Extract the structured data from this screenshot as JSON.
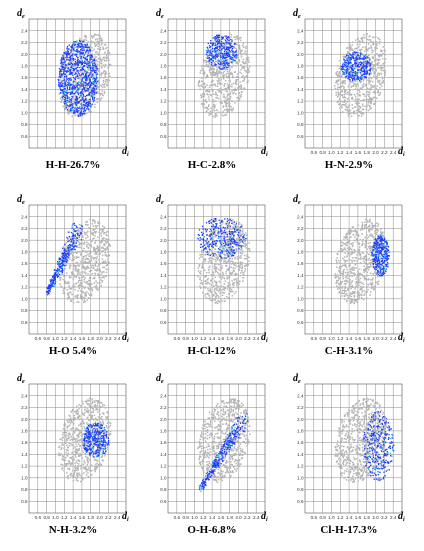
{
  "colors": {
    "background_cloud": "#b4b4b4",
    "highlight_points": "#1f3cf5",
    "highlight_core": "#15b7ee",
    "grid_line": "#7d7d7d"
  },
  "chart_data": [
    {
      "type": "scatter",
      "caption": "H-H-26.7%",
      "ylabel": "de",
      "xlabel": "di",
      "y_ticks": [
        "2.4",
        "2.2",
        "2.0",
        "1.8",
        "1.6",
        "1.4",
        "1.2",
        "1.0",
        "0.8",
        "0.6"
      ],
      "x_ticks": [],
      "xlim": [
        0.4,
        2.6
      ],
      "ylim": [
        0.4,
        2.6
      ],
      "highlight": {
        "shape": "full_cloud",
        "center": [
          1.5,
          1.6
        ],
        "extent": [
          0.45,
          0.65
        ]
      }
    },
    {
      "type": "scatter",
      "caption": "H-C-2.8%",
      "ylabel": "de",
      "xlabel": "di",
      "y_ticks": [
        "2.4",
        "2.2",
        "2.0",
        "1.8",
        "1.6",
        "1.4",
        "1.2",
        "1.0",
        "0.8",
        "0.6"
      ],
      "x_ticks": [],
      "xlim": [
        0.4,
        2.6
      ],
      "ylim": [
        0.4,
        2.6
      ],
      "highlight": {
        "shape": "wing_top",
        "center": [
          1.6,
          2.05
        ],
        "extent": [
          0.35,
          0.3
        ]
      }
    },
    {
      "type": "scatter",
      "caption": "H-N-2.9%",
      "ylabel": "de",
      "xlabel": "di",
      "y_ticks": [
        "2.4",
        "2.2",
        "2.0",
        "1.8",
        "1.6",
        "1.4",
        "1.2",
        "1.0",
        "0.8",
        "0.6"
      ],
      "x_ticks": [
        "0.6",
        "0.8",
        "1.0",
        "1.2",
        "1.4",
        "1.6",
        "1.8",
        "2.0",
        "2.2",
        "2.4"
      ],
      "xlim": [
        0.4,
        2.6
      ],
      "ylim": [
        0.4,
        2.6
      ],
      "highlight": {
        "shape": "wing_center",
        "center": [
          1.55,
          1.8
        ],
        "extent": [
          0.35,
          0.25
        ]
      }
    },
    {
      "type": "scatter",
      "caption": "H-O 5.4%",
      "ylabel": "de",
      "xlabel": "di",
      "y_ticks": [
        "2.4",
        "2.2",
        "2.0",
        "1.8",
        "1.6",
        "1.4",
        "1.2",
        "1.0",
        "0.8",
        "0.6"
      ],
      "x_ticks": [
        "0.6",
        "0.8",
        "1.0",
        "1.2",
        "1.4",
        "1.6",
        "1.8",
        "2.0",
        "2.2",
        "2.4"
      ],
      "xlim": [
        0.4,
        2.6
      ],
      "ylim": [
        0.4,
        2.6
      ],
      "highlight": {
        "shape": "spike_lower_left",
        "tip": [
          0.8,
          1.1
        ],
        "end": [
          1.5,
          2.2
        ]
      }
    },
    {
      "type": "scatter",
      "caption": "H-Cl-12%",
      "ylabel": "de",
      "xlabel": "di",
      "y_ticks": [
        "2.4",
        "2.2",
        "2.0",
        "1.8",
        "1.6",
        "1.4",
        "1.2",
        "1.0",
        "0.8",
        "0.6"
      ],
      "x_ticks": [
        "0.6",
        "0.8",
        "1.0",
        "1.2",
        "1.4",
        "1.6",
        "1.8",
        "2.0",
        "2.2",
        "2.4"
      ],
      "xlim": [
        0.4,
        2.6
      ],
      "ylim": [
        0.4,
        2.6
      ],
      "highlight": {
        "shape": "upper_band",
        "center": [
          1.6,
          2.05
        ],
        "extent": [
          0.55,
          0.35
        ]
      }
    },
    {
      "type": "scatter",
      "caption": "C-H-3.1%",
      "ylabel": "de",
      "xlabel": "di",
      "y_ticks": [
        "2.4",
        "2.2",
        "2.0",
        "1.8",
        "1.6",
        "1.4",
        "1.2",
        "1.0",
        "0.8",
        "0.6"
      ],
      "x_ticks": [
        "0.6",
        "0.8",
        "1.0",
        "1.2",
        "1.4",
        "1.6",
        "1.8",
        "2.0",
        "2.2",
        "2.4"
      ],
      "xlim": [
        0.4,
        2.6
      ],
      "ylim": [
        0.4,
        2.6
      ],
      "highlight": {
        "shape": "wing_right",
        "center": [
          2.1,
          1.75
        ],
        "extent": [
          0.2,
          0.35
        ]
      }
    },
    {
      "type": "scatter",
      "caption": "N-H-3.2%",
      "ylabel": "de",
      "xlabel": "di",
      "y_ticks": [
        "2.4",
        "2.2",
        "2.0",
        "1.8",
        "1.6",
        "1.4",
        "1.2",
        "1.0",
        "0.8",
        "0.6"
      ],
      "x_ticks": [
        "0.6",
        "0.8",
        "1.0",
        "1.2",
        "1.4",
        "1.6",
        "1.8",
        "2.0",
        "2.2",
        "2.4"
      ],
      "xlim": [
        0.4,
        2.6
      ],
      "ylim": [
        0.4,
        2.6
      ],
      "highlight": {
        "shape": "wing_right_center",
        "center": [
          1.9,
          1.65
        ],
        "extent": [
          0.3,
          0.3
        ]
      }
    },
    {
      "type": "scatter",
      "caption": "O-H-6.8%",
      "ylabel": "de",
      "xlabel": "di",
      "y_ticks": [
        "2.4",
        "2.2",
        "2.0",
        "1.8",
        "1.6",
        "1.4",
        "1.2",
        "1.0",
        "0.8",
        "0.6"
      ],
      "x_ticks": [
        "0.6",
        "0.8",
        "1.0",
        "1.2",
        "1.4",
        "1.6",
        "1.8",
        "2.0",
        "2.2",
        "2.4"
      ],
      "xlim": [
        0.4,
        2.6
      ],
      "ylim": [
        0.4,
        2.6
      ],
      "highlight": {
        "shape": "spike_down",
        "tip": [
          1.1,
          0.8
        ],
        "end": [
          2.1,
          2.0
        ]
      }
    },
    {
      "type": "scatter",
      "caption": "Cl-H-17.3%",
      "ylabel": "de",
      "xlabel": "di",
      "y_ticks": [
        "2.4",
        "2.2",
        "2.0",
        "1.8",
        "1.6",
        "1.4",
        "1.2",
        "1.0",
        "0.8",
        "0.6"
      ],
      "x_ticks": [
        "0.6",
        "0.8",
        "1.0",
        "1.2",
        "1.4",
        "1.6",
        "1.8",
        "2.0",
        "2.2",
        "2.4"
      ],
      "xlim": [
        0.4,
        2.6
      ],
      "ylim": [
        0.4,
        2.6
      ],
      "highlight": {
        "shape": "right_band",
        "center": [
          2.05,
          1.55
        ],
        "extent": [
          0.35,
          0.6
        ]
      }
    }
  ]
}
